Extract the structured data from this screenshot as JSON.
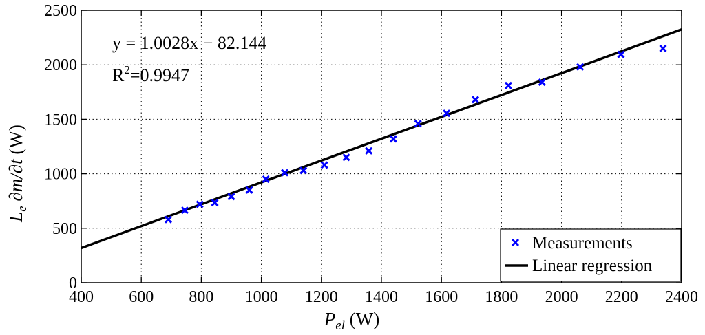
{
  "chart_data": {
    "type": "scatter",
    "xlabel_main": "P",
    "xlabel_sub": "el",
    "xlabel_unit": " (W)",
    "ylabel_main": "L",
    "ylabel_sub": "e",
    "ylabel_rest": " ∂m/∂t",
    "ylabel_unit": " (W)",
    "xlim": [
      400,
      2400
    ],
    "ylim": [
      0,
      2500
    ],
    "xticks": [
      400,
      600,
      800,
      1000,
      1200,
      1400,
      1600,
      1800,
      2000,
      2200,
      2400
    ],
    "yticks": [
      0,
      500,
      1000,
      1500,
      2000,
      2500
    ],
    "grid": true,
    "legend_position": "bottom-right",
    "series": [
      {
        "name": "Measurements",
        "marker": "x",
        "color": "#0000ff",
        "x": [
          690,
          745,
          795,
          845,
          900,
          960,
          1015,
          1078,
          1140,
          1210,
          1283,
          1358,
          1440,
          1522,
          1617,
          1713,
          1823,
          1935,
          2062,
          2198,
          2338
        ],
        "y": [
          580,
          665,
          720,
          735,
          790,
          850,
          950,
          1010,
          1030,
          1080,
          1150,
          1210,
          1320,
          1460,
          1555,
          1680,
          1810,
          1840,
          1980,
          2095,
          2150
        ]
      },
      {
        "name": "Linear regression",
        "type": "line",
        "color": "#000000",
        "slope": 1.0028,
        "intercept": -82.144
      }
    ],
    "annotations": {
      "equation": "y = 1.0028x − 82.144",
      "r2_prefix": "R",
      "r2_sup": "2",
      "r2_value": "=0.9947"
    }
  }
}
